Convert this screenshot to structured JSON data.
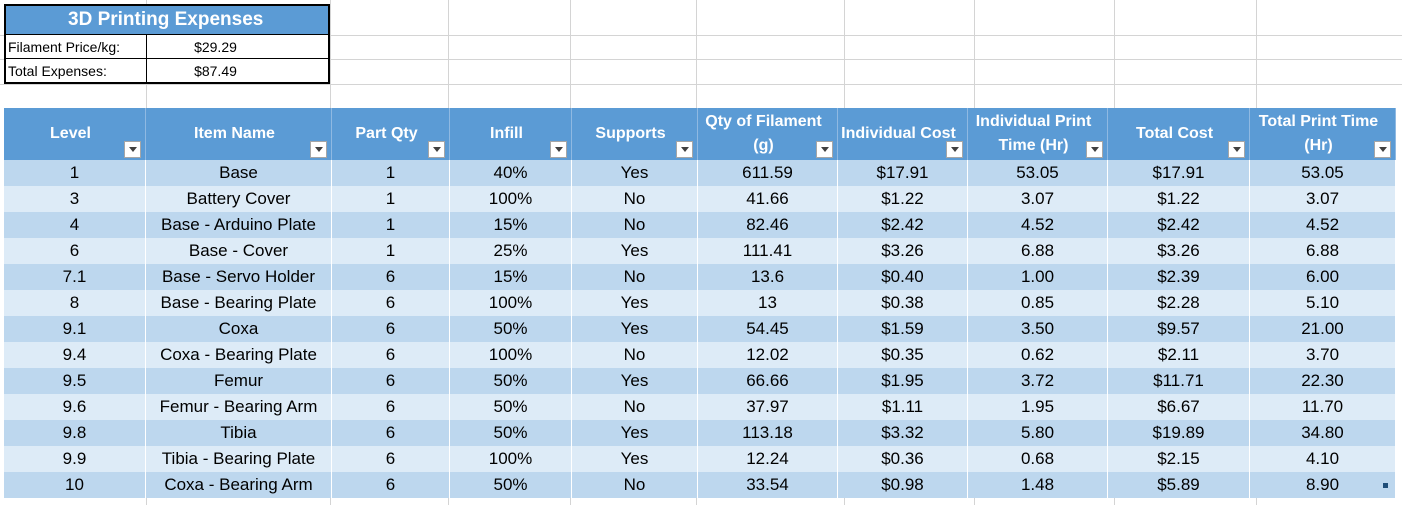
{
  "summary": {
    "title": "3D Printing Expenses",
    "filament_label": "Filament Price/kg:",
    "filament_value": "$29.29",
    "total_label": "Total Expenses:",
    "total_value": "$87.49"
  },
  "table": {
    "headers": [
      "Level",
      "Item Name",
      "Part Qty",
      "Infill",
      "Supports",
      "Qty of Filament (g)",
      "Individual Cost",
      "Individual Print Time (Hr)",
      "Total Cost",
      "Total Print Time (Hr)"
    ],
    "rows": [
      [
        "1",
        "Base",
        "1",
        "40%",
        "Yes",
        "611.59",
        "$17.91",
        "53.05",
        "$17.91",
        "53.05"
      ],
      [
        "3",
        "Battery Cover",
        "1",
        "100%",
        "No",
        "41.66",
        "$1.22",
        "3.07",
        "$1.22",
        "3.07"
      ],
      [
        "4",
        "Base - Arduino Plate",
        "1",
        "15%",
        "No",
        "82.46",
        "$2.42",
        "4.52",
        "$2.42",
        "4.52"
      ],
      [
        "6",
        "Base - Cover",
        "1",
        "25%",
        "Yes",
        "111.41",
        "$3.26",
        "6.88",
        "$3.26",
        "6.88"
      ],
      [
        "7.1",
        "Base - Servo Holder",
        "6",
        "15%",
        "No",
        "13.6",
        "$0.40",
        "1.00",
        "$2.39",
        "6.00"
      ],
      [
        "8",
        "Base - Bearing Plate",
        "6",
        "100%",
        "Yes",
        "13",
        "$0.38",
        "0.85",
        "$2.28",
        "5.10"
      ],
      [
        "9.1",
        "Coxa",
        "6",
        "50%",
        "Yes",
        "54.45",
        "$1.59",
        "3.50",
        "$9.57",
        "21.00"
      ],
      [
        "9.4",
        "Coxa - Bearing Plate",
        "6",
        "100%",
        "No",
        "12.02",
        "$0.35",
        "0.62",
        "$2.11",
        "3.70"
      ],
      [
        "9.5",
        "Femur",
        "6",
        "50%",
        "Yes",
        "66.66",
        "$1.95",
        "3.72",
        "$11.71",
        "22.30"
      ],
      [
        "9.6",
        "Femur - Bearing Arm",
        "6",
        "50%",
        "No",
        "37.97",
        "$1.11",
        "1.95",
        "$6.67",
        "11.70"
      ],
      [
        "9.8",
        "Tibia",
        "6",
        "50%",
        "Yes",
        "113.18",
        "$3.32",
        "5.80",
        "$19.89",
        "34.80"
      ],
      [
        "9.9",
        "Tibia - Bearing Plate",
        "6",
        "100%",
        "Yes",
        "12.24",
        "$0.36",
        "0.68",
        "$2.15",
        "4.10"
      ],
      [
        "10",
        "Coxa - Bearing Arm",
        "6",
        "50%",
        "No",
        "33.54",
        "$0.98",
        "1.48",
        "$5.89",
        "8.90"
      ]
    ]
  },
  "colors": {
    "header_blue": "#5b9bd5",
    "row_dark": "#bdd7ee",
    "row_light": "#ddebf7"
  }
}
